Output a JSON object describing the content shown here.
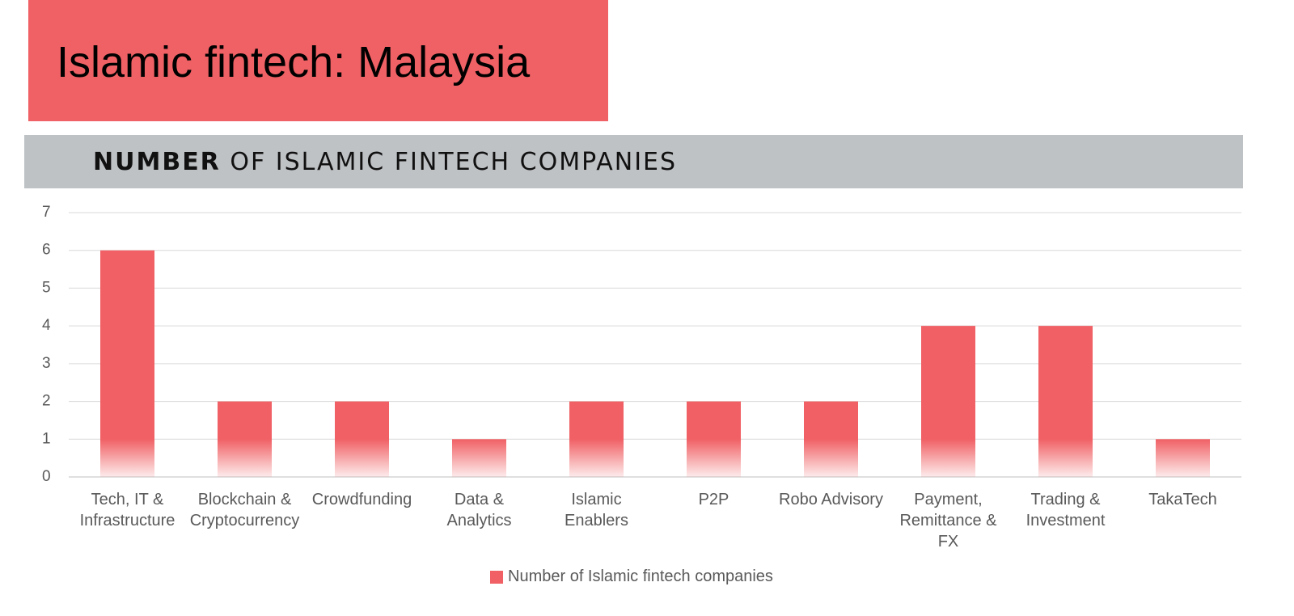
{
  "title": "Islamic fintech: Malaysia",
  "chart_data": {
    "type": "bar",
    "title_bold": "NUMBER",
    "title": "OF ISLAMIC FINTECH COMPANIES",
    "categories": [
      "Tech, IT & Infrastructure",
      "Blockchain & Cryptocurrency",
      "Crowdfunding",
      "Data & Analytics",
      "Islamic Enablers",
      "P2P",
      "Robo Advisory",
      "Payment, Remittance & FX",
      "Trading & Investment",
      "TakaTech"
    ],
    "series": [
      {
        "name": "Number of Islamic fintech companies",
        "color": "#f06064",
        "values": [
          6,
          2,
          2,
          1,
          2,
          2,
          2,
          4,
          4,
          1
        ]
      }
    ],
    "ylim": [
      0,
      7
    ],
    "yticks": [
      0,
      1,
      2,
      3,
      4,
      5,
      6,
      7
    ],
    "grid": true,
    "legend": "bottom"
  }
}
